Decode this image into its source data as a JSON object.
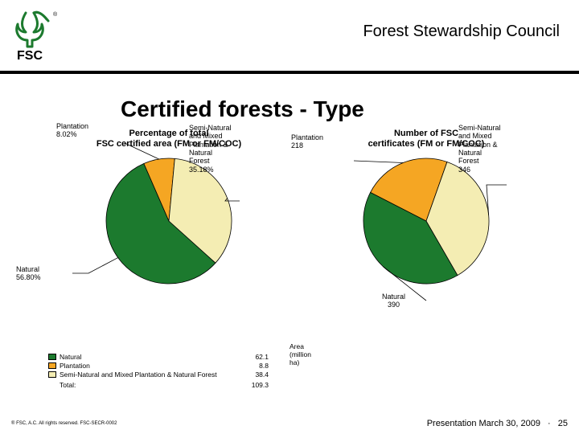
{
  "header": {
    "org": "Forest Stewardship Council",
    "logo": {
      "tree_color": "#1c7a2e",
      "text": "FSC",
      "tm": "®"
    }
  },
  "title": "Certified forests - Type",
  "colors": {
    "natural": "#1c7a2e",
    "plantation": "#f5a623",
    "mixed": "#f4edb3",
    "stroke": "#000000",
    "bg": "#ffffff"
  },
  "chart_left": {
    "title": "Percentage of total\nFSC certified area (FM or FM/COC)",
    "type": "pie",
    "slices": [
      {
        "key": "natural",
        "label": "Natural",
        "value_label": "56.80%",
        "pct": 56.8,
        "color": "#1c7a2e"
      },
      {
        "key": "plantation",
        "label": "Plantation",
        "value_label": "8.02%",
        "pct": 8.02,
        "color": "#f5a623"
      },
      {
        "key": "mixed",
        "label": "Semi-Natural\nand Mixed\nPlantation &\nNatural\nForest",
        "value_label": "35.18%",
        "pct": 35.18,
        "color": "#f4edb3"
      }
    ]
  },
  "chart_right": {
    "title": "Number of FSC\ncertificates (FM or FM/COC)",
    "type": "pie",
    "slices": [
      {
        "key": "natural",
        "label": "Natural",
        "value_label": "390",
        "pct": 40.88,
        "color": "#1c7a2e"
      },
      {
        "key": "plantation",
        "label": "Plantation",
        "value_label": "218",
        "pct": 22.85,
        "color": "#f5a623"
      },
      {
        "key": "mixed",
        "label": "Semi-Natural\nand Mixed\nPlantation &\nNatural\nForest",
        "value_label": "346",
        "pct": 36.27,
        "color": "#f4edb3"
      }
    ]
  },
  "legend": {
    "area_header": "Area (million ha)",
    "rows": [
      {
        "name": "Natural",
        "color": "#1c7a2e",
        "area": "62.1"
      },
      {
        "name": "Plantation",
        "color": "#f5a623",
        "area": "8.8"
      },
      {
        "name": "Semi-Natural and Mixed Plantation & Natural Forest",
        "color": "#f4edb3",
        "area": "38.4"
      }
    ],
    "total_label": "Total:",
    "total_value": "109.3"
  },
  "footer": {
    "copyright": "® FSC, A.C. All rights reserved. FSC-SECR-0002",
    "presentation": "Presentation March 30, 2009",
    "page_sep": "·",
    "page": "25"
  }
}
